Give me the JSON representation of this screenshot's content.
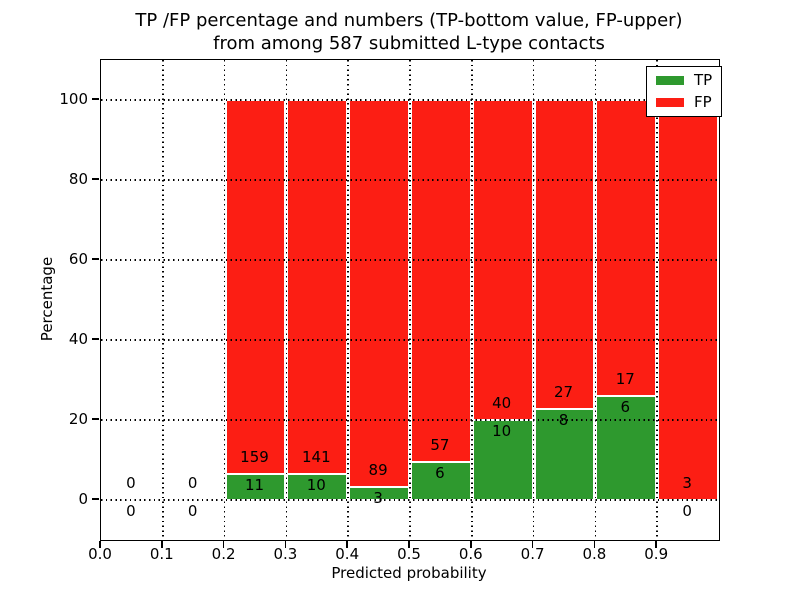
{
  "chart_data": {
    "type": "bar",
    "stacked": true,
    "title_lines": [
      "TP /FP percentage and numbers (TP-bottom value, FP-upper)",
      "from among 587 submitted L-type contacts"
    ],
    "xlabel": "Predicted probability",
    "ylabel": "Percentage",
    "xlim": [
      0.0,
      1.0
    ],
    "ylim": [
      -10,
      110
    ],
    "xtick_values": [
      0.0,
      0.1,
      0.2,
      0.3,
      0.4,
      0.5,
      0.6,
      0.7,
      0.8,
      0.9
    ],
    "xtick_labels": [
      "0.0",
      "0.1",
      "0.2",
      "0.3",
      "0.4",
      "0.5",
      "0.6",
      "0.7",
      "0.8",
      "0.9"
    ],
    "ytick_values": [
      0,
      20,
      40,
      60,
      80,
      100
    ],
    "ytick_labels": [
      "0",
      "20",
      "40",
      "60",
      "80",
      "100"
    ],
    "grid": {
      "style": "dotted",
      "color": "#000000",
      "above_bars": true
    },
    "bin_width": 0.1,
    "categories": [
      0.05,
      0.15,
      0.25,
      0.35,
      0.45,
      0.55,
      0.65,
      0.75,
      0.85,
      0.95
    ],
    "series": [
      {
        "name": "TP",
        "color": "#2e992e",
        "counts": [
          0,
          0,
          11,
          10,
          3,
          6,
          10,
          8,
          6,
          0
        ],
        "percent": [
          0,
          0,
          6.47,
          6.62,
          3.26,
          9.52,
          20.0,
          22.86,
          26.09,
          0
        ]
      },
      {
        "name": "FP",
        "color": "#fc1e14",
        "counts": [
          0,
          0,
          159,
          141,
          89,
          57,
          40,
          27,
          17,
          3
        ],
        "percent": [
          0,
          0,
          93.53,
          93.38,
          96.74,
          90.48,
          80.0,
          77.14,
          73.91,
          100.0
        ]
      }
    ],
    "bins": [
      {
        "x0": 0.0,
        "x1": 0.1,
        "tp_count": "0",
        "fp_count": "0",
        "tp_pct": 0,
        "has_bar": false
      },
      {
        "x0": 0.1,
        "x1": 0.2,
        "tp_count": "0",
        "fp_count": "0",
        "tp_pct": 0,
        "has_bar": false
      },
      {
        "x0": 0.2,
        "x1": 0.3,
        "tp_count": "11",
        "fp_count": "159",
        "tp_pct": 6.47,
        "has_bar": true
      },
      {
        "x0": 0.3,
        "x1": 0.4,
        "tp_count": "10",
        "fp_count": "141",
        "tp_pct": 6.62,
        "has_bar": true
      },
      {
        "x0": 0.4,
        "x1": 0.5,
        "tp_count": "3",
        "fp_count": "89",
        "tp_pct": 3.26,
        "has_bar": true
      },
      {
        "x0": 0.5,
        "x1": 0.6,
        "tp_count": "6",
        "fp_count": "57",
        "tp_pct": 9.52,
        "has_bar": true
      },
      {
        "x0": 0.6,
        "x1": 0.7,
        "tp_count": "10",
        "fp_count": "40",
        "tp_pct": 20.0,
        "has_bar": true
      },
      {
        "x0": 0.7,
        "x1": 0.8,
        "tp_count": "8",
        "fp_count": "27",
        "tp_pct": 22.86,
        "has_bar": true
      },
      {
        "x0": 0.8,
        "x1": 0.9,
        "tp_count": "6",
        "fp_count": "17",
        "tp_pct": 26.09,
        "has_bar": true
      },
      {
        "x0": 0.9,
        "x1": 1.0,
        "tp_count": "0",
        "fp_count": "3",
        "tp_pct": 0,
        "has_bar": true
      }
    ],
    "legend": {
      "position": "upper-right",
      "entries": [
        {
          "label": "TP",
          "color": "#2e992e"
        },
        {
          "label": "FP",
          "color": "#fc1e14"
        }
      ]
    },
    "colors": {
      "tp": "#2e992e",
      "fp": "#fc1e14",
      "text": "#000000",
      "background": "#ffffff"
    }
  }
}
